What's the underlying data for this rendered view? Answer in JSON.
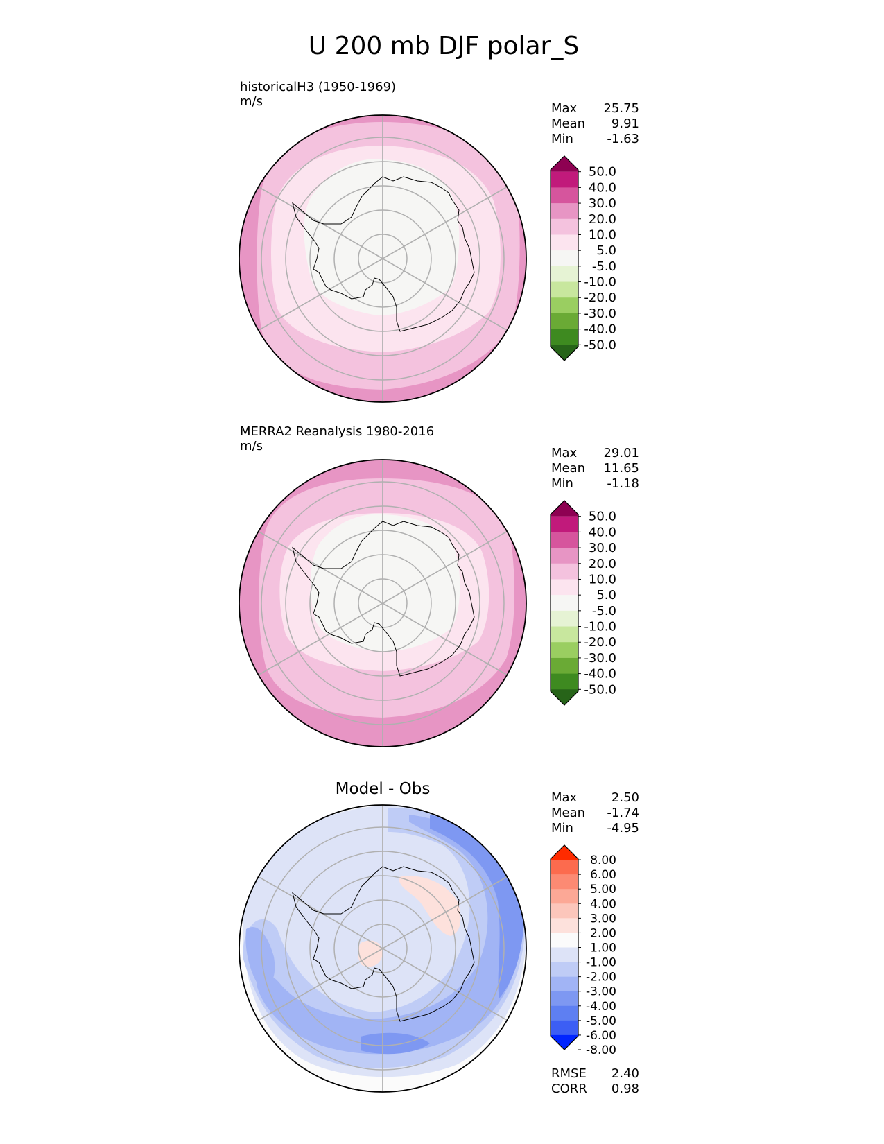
{
  "title": "U 200 mb DJF polar_S",
  "colors": {
    "antarctica_coast": "#000000",
    "grid_lines": "#b0b0b0",
    "outline": "#000000",
    "pink_1": "#fce4ef",
    "pink_2": "#f4c2de",
    "pink_3": "#e795c4",
    "pink_4": "#d6559d",
    "pink_5": "#c11a7b",
    "pink_6": "#8e0152",
    "neutral": "#f6f6f4",
    "green_1": "#e6f3d4",
    "green_2": "#c8e79e",
    "green_3": "#9ace61",
    "green_4": "#6aaa35",
    "green_5": "#3e8a20",
    "green_6": "#276419",
    "diff_white": "#fbfbfb",
    "blue_1": "#dde3f7",
    "blue_2": "#bfccf6",
    "blue_3": "#a1b4f5",
    "blue_4": "#7e98f2",
    "blue_5": "#5e7ff2",
    "blue_6": "#3c5ef4",
    "blue_7": "#0024ff",
    "red_1": "#fde1dc",
    "red_2": "#fcc6bb",
    "red_3": "#fca896",
    "red_4": "#fc8a73",
    "red_5": "#fc6b4e",
    "red_6": "#ff2b00"
  },
  "chart_data": [
    {
      "type": "heatmap",
      "title": "historicalH3 (1950-1969)",
      "units": "m/s",
      "stats": {
        "labels": [
          "Max",
          "Mean",
          "Min"
        ],
        "values": [
          "25.75",
          "9.91",
          "-1.63"
        ]
      },
      "colorbar": {
        "tick_labels": [
          "50.0",
          "40.0",
          "30.0",
          "20.0",
          "10.0",
          "5.0",
          "-5.0",
          "-10.0",
          "-20.0",
          "-30.0",
          "-40.0",
          "-50.0"
        ],
        "colors": [
          "#8e0152",
          "#c11a7b",
          "#d6559d",
          "#e795c4",
          "#f4c2de",
          "#fce4ef",
          "#f6f6f4",
          "#e6f3d4",
          "#c8e79e",
          "#9ace61",
          "#6aaa35",
          "#3e8a20",
          "#276419"
        ]
      },
      "field_bands": {
        "rings": [
          {
            "value_range": "20.0 to 30.0",
            "color_key": "pink_3"
          },
          {
            "value_range": "10.0 to 20.0",
            "color_key": "pink_2"
          },
          {
            "value_range": "5.0 to 10.0",
            "color_key": "pink_1"
          },
          {
            "value_range": "-5.0 to 5.0",
            "color_key": "neutral"
          }
        ]
      }
    },
    {
      "type": "heatmap",
      "title": "MERRA2 Reanalysis 1980-2016",
      "units": "m/s",
      "stats": {
        "labels": [
          "Max",
          "Mean",
          "Min"
        ],
        "values": [
          "29.01",
          "11.65",
          "-1.18"
        ]
      },
      "colorbar": {
        "tick_labels": [
          "50.0",
          "40.0",
          "30.0",
          "20.0",
          "10.0",
          "5.0",
          "-5.0",
          "-10.0",
          "-20.0",
          "-30.0",
          "-40.0",
          "-50.0"
        ],
        "colors": [
          "#8e0152",
          "#c11a7b",
          "#d6559d",
          "#e795c4",
          "#f4c2de",
          "#fce4ef",
          "#f6f6f4",
          "#e6f3d4",
          "#c8e79e",
          "#9ace61",
          "#6aaa35",
          "#3e8a20",
          "#276419"
        ]
      },
      "field_bands": {
        "rings": [
          {
            "value_range": "20.0 to 30.0",
            "color_key": "pink_3"
          },
          {
            "value_range": "10.0 to 20.0",
            "color_key": "pink_2"
          },
          {
            "value_range": "5.0 to 10.0",
            "color_key": "pink_1"
          },
          {
            "value_range": "-5.0 to 5.0",
            "color_key": "neutral"
          }
        ]
      }
    },
    {
      "type": "heatmap",
      "title": "Model - Obs",
      "units": "",
      "stats": {
        "labels": [
          "Max",
          "Mean",
          "Min"
        ],
        "values": [
          "2.50",
          "-1.74",
          "-4.95"
        ]
      },
      "colorbar": {
        "tick_labels": [
          "8.00",
          "6.00",
          "5.00",
          "4.00",
          "3.00",
          "2.00",
          "1.00",
          "-1.00",
          "-2.00",
          "-3.00",
          "-4.00",
          "-5.00",
          "-6.00",
          "-8.00"
        ],
        "colors": [
          "#ff2b00",
          "#fc6b4e",
          "#fc8a73",
          "#fca896",
          "#fcc6bb",
          "#fde1dc",
          "#fbfbfb",
          "#dde3f7",
          "#bfccf6",
          "#a1b4f5",
          "#7e98f2",
          "#5e7ff2",
          "#3c5ef4",
          "#0024ff"
        ]
      },
      "metrics": {
        "labels": [
          "RMSE",
          "CORR"
        ],
        "values": [
          "2.40",
          "0.98"
        ]
      }
    }
  ]
}
